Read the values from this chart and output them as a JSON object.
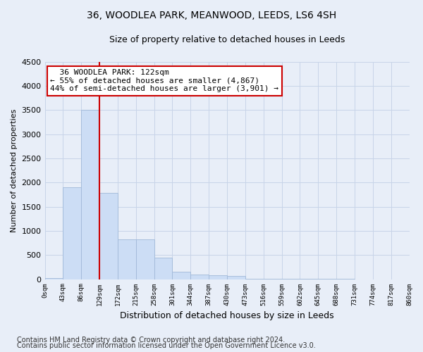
{
  "title": "36, WOODLEA PARK, MEANWOOD, LEEDS, LS6 4SH",
  "subtitle": "Size of property relative to detached houses in Leeds",
  "xlabel": "Distribution of detached houses by size in Leeds",
  "ylabel": "Number of detached properties",
  "bar_values": [
    25,
    1900,
    3500,
    1780,
    820,
    820,
    450,
    160,
    100,
    75,
    60,
    10,
    5,
    3,
    2,
    1,
    1,
    0,
    0,
    0
  ],
  "bar_labels": [
    "0sqm",
    "43sqm",
    "86sqm",
    "129sqm",
    "172sqm",
    "215sqm",
    "258sqm",
    "301sqm",
    "344sqm",
    "387sqm",
    "430sqm",
    "473sqm",
    "516sqm",
    "559sqm",
    "602sqm",
    "645sqm",
    "688sqm",
    "731sqm",
    "774sqm",
    "817sqm",
    "860sqm"
  ],
  "bar_color": "#ccddf5",
  "bar_edge_color": "#a0b8d8",
  "grid_color": "#c8d4e8",
  "background_color": "#e8eef8",
  "annotation_box_color": "#ffffff",
  "annotation_border_color": "#cc0000",
  "vline_color": "#cc0000",
  "annotation_text_line1": "36 WOODLEA PARK: 122sqm",
  "annotation_text_line2": "← 55% of detached houses are smaller (4,867)",
  "annotation_text_line3": "44% of semi-detached houses are larger (3,901) →",
  "ylim": [
    0,
    4500
  ],
  "yticks": [
    0,
    500,
    1000,
    1500,
    2000,
    2500,
    3000,
    3500,
    4000,
    4500
  ],
  "footer_line1": "Contains HM Land Registry data © Crown copyright and database right 2024.",
  "footer_line2": "Contains public sector information licensed under the Open Government Licence v3.0.",
  "title_fontsize": 10,
  "subtitle_fontsize": 9,
  "annotation_fontsize": 8,
  "footer_fontsize": 7,
  "ylabel_fontsize": 8,
  "xlabel_fontsize": 9
}
